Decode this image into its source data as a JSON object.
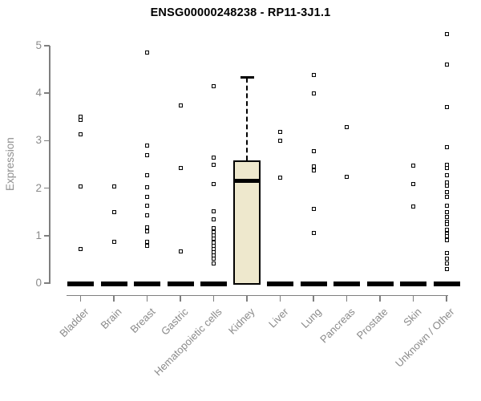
{
  "title": "ENSG00000248238 - RP11-3J1.1",
  "colors": {
    "box_fill": "#EEE8CD",
    "box_border": "#000000",
    "point_border": "#000000",
    "axis": "#7f7f7f",
    "tick_label": "#8a8a8a",
    "title": "#000000"
  },
  "chart_data": {
    "type": "boxplot",
    "title": "ENSG00000248238 - RP11-3J1.1",
    "xlabel": "",
    "ylabel": "Expression",
    "ylim": [
      0,
      5
    ],
    "yticks": [
      0,
      1,
      2,
      3,
      4,
      5
    ],
    "grid": false,
    "legend": null,
    "categories": [
      "Bladder",
      "Brain",
      "Breast",
      "Gastric",
      "Hematopoietic cells",
      "Kidney",
      "Liver",
      "Lung",
      "Pancreas",
      "Prostate",
      "Skin",
      "Unknown / Other"
    ],
    "boxes": [
      {
        "category": "Bladder",
        "q1": 0,
        "median": 0,
        "q3": 0,
        "whisker_low": 0,
        "whisker_high": 0,
        "outliers": [
          3.5,
          3.44,
          3.13,
          2.03,
          0.72
        ]
      },
      {
        "category": "Brain",
        "q1": 0,
        "median": 0,
        "q3": 0,
        "whisker_low": 0,
        "whisker_high": 0,
        "outliers": [
          2.03,
          1.49,
          0.87
        ]
      },
      {
        "category": "Breast",
        "q1": 0,
        "median": 0,
        "q3": 0,
        "whisker_low": 0,
        "whisker_high": 0,
        "outliers": [
          4.85,
          2.89,
          2.7,
          2.27,
          2.02,
          1.82,
          1.63,
          1.43,
          1.18,
          1.09,
          0.87,
          0.78
        ]
      },
      {
        "category": "Gastric",
        "q1": 0,
        "median": 0,
        "q3": 0,
        "whisker_low": 0,
        "whisker_high": 0,
        "outliers": [
          3.75,
          2.43,
          0.67
        ]
      },
      {
        "category": "Hematopoietic cells",
        "q1": 0,
        "median": 0,
        "q3": 0,
        "whisker_low": 0,
        "whisker_high": 0,
        "outliers": [
          4.15,
          2.64,
          2.5,
          2.09,
          1.51,
          1.35,
          1.15,
          1.08,
          1.0,
          0.93,
          0.86,
          0.79,
          0.72,
          0.65,
          0.58,
          0.52,
          0.42
        ]
      },
      {
        "category": "Kidney",
        "q1": 0,
        "median": 2.15,
        "q3": 2.58,
        "whisker_low": 0,
        "whisker_high": 4.33,
        "outliers": []
      },
      {
        "category": "Liver",
        "q1": 0,
        "median": 0,
        "q3": 0,
        "whisker_low": 0,
        "whisker_high": 0,
        "outliers": [
          3.18,
          2.99,
          2.22
        ]
      },
      {
        "category": "Lung",
        "q1": 0,
        "median": 0,
        "q3": 0,
        "whisker_low": 0,
        "whisker_high": 0,
        "outliers": [
          4.39,
          3.99,
          2.78,
          2.45,
          2.38,
          1.57,
          1.06
        ]
      },
      {
        "category": "Pancreas",
        "q1": 0,
        "median": 0,
        "q3": 0,
        "whisker_low": 0,
        "whisker_high": 0,
        "outliers": [
          3.29,
          2.23
        ]
      },
      {
        "category": "Prostate",
        "q1": 0,
        "median": 0,
        "q3": 0,
        "whisker_low": 0,
        "whisker_high": 0,
        "outliers": []
      },
      {
        "category": "Skin",
        "q1": 0,
        "median": 0,
        "q3": 0,
        "whisker_low": 0,
        "whisker_high": 0,
        "outliers": [
          2.48,
          2.09,
          1.62
        ]
      },
      {
        "category": "Unknown / Other",
        "q1": 0,
        "median": 0,
        "q3": 0,
        "whisker_low": 0,
        "whisker_high": 0,
        "outliers": [
          5.25,
          4.6,
          3.7,
          2.87,
          2.5,
          2.42,
          2.27,
          2.12,
          2.05,
          1.92,
          1.82,
          1.63,
          1.5,
          1.4,
          1.3,
          1.25,
          1.12,
          1.04,
          0.98,
          0.9,
          0.64,
          0.52,
          0.42,
          0.3
        ]
      }
    ]
  }
}
